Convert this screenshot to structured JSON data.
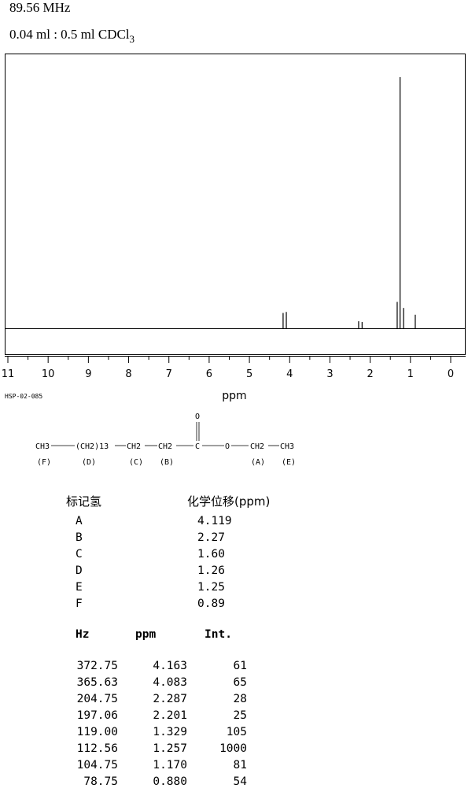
{
  "header": {
    "frequency": "89.56 MHz",
    "sample_prefix": "0.04 ml : 0.5 ml CDCl",
    "sample_subscript": "3"
  },
  "spectrum_code": "HSP-02-085",
  "chart_data": {
    "type": "line",
    "title": "",
    "xlabel": "ppm",
    "ylabel": "",
    "xlim": [
      11,
      0
    ],
    "x_axis_reversed": true,
    "x_ticks": [
      "11",
      "10",
      "9",
      "8",
      "7",
      "6",
      "5",
      "4",
      "3",
      "2",
      "1",
      "0"
    ],
    "grid": false,
    "series": [
      {
        "peaks": [
          {
            "ppm": 4.163,
            "intensity": 61
          },
          {
            "ppm": 4.083,
            "intensity": 65
          },
          {
            "ppm": 2.287,
            "intensity": 28
          },
          {
            "ppm": 2.201,
            "intensity": 25
          },
          {
            "ppm": 1.329,
            "intensity": 105
          },
          {
            "ppm": 1.257,
            "intensity": 1000
          },
          {
            "ppm": 1.17,
            "intensity": 81
          },
          {
            "ppm": 0.88,
            "intensity": 54
          }
        ]
      }
    ]
  },
  "structure": {
    "groups": [
      "CH3",
      "(CH2)13",
      "CH2",
      "CH2",
      "C",
      "O",
      "CH2",
      "CH3"
    ],
    "carbonyl_o": "O",
    "labels": [
      "(F)",
      "(D)",
      "(C)",
      "(B)",
      "(A)",
      "(E)"
    ]
  },
  "assignment": {
    "header_label": "标记氢",
    "header_shift": "化学位移(ppm)",
    "rows": [
      {
        "label": "A",
        "shift": "4.119"
      },
      {
        "label": "B",
        "shift": "2.27"
      },
      {
        "label": "C",
        "shift": "1.60"
      },
      {
        "label": "D",
        "shift": "1.26"
      },
      {
        "label": "E",
        "shift": "1.25"
      },
      {
        "label": "F",
        "shift": "0.89"
      }
    ]
  },
  "peak_table": {
    "headers": {
      "hz": "Hz",
      "ppm": "ppm",
      "int": "Int."
    },
    "rows": [
      {
        "hz": "372.75",
        "ppm": "4.163",
        "int": "61"
      },
      {
        "hz": "365.63",
        "ppm": "4.083",
        "int": "65"
      },
      {
        "hz": "204.75",
        "ppm": "2.287",
        "int": "28"
      },
      {
        "hz": "197.06",
        "ppm": "2.201",
        "int": "25"
      },
      {
        "hz": "119.00",
        "ppm": "1.329",
        "int": "105"
      },
      {
        "hz": "112.56",
        "ppm": "1.257",
        "int": "1000"
      },
      {
        "hz": "104.75",
        "ppm": "1.170",
        "int": "81"
      },
      {
        "hz": "78.75",
        "ppm": "0.880",
        "int": "54"
      }
    ]
  }
}
